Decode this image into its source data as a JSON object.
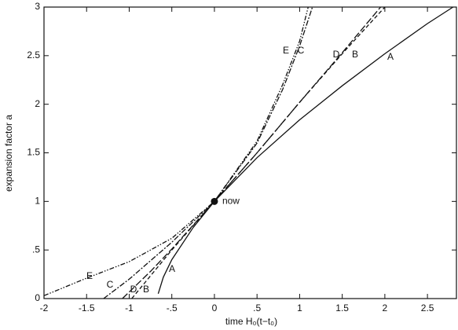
{
  "chart_data": {
    "type": "line",
    "xlabel": "time H₀(t−t₀)",
    "ylabel": "expansion factor a",
    "xlim": [
      -2,
      2.84
    ],
    "ylim": [
      0,
      3
    ],
    "xticks": [
      -2,
      {
        "value": -1.5,
        "label": "-1.5"
      },
      -1,
      {
        "value": -0.5,
        "label": "-.5"
      },
      0,
      {
        "value": 0.5,
        "label": ".5"
      },
      1,
      {
        "value": 1.5,
        "label": "1.5"
      },
      2,
      {
        "value": 2.5,
        "label": "2.5"
      }
    ],
    "yticks": [
      0,
      {
        "value": 0.5,
        "label": ".5"
      },
      1,
      {
        "value": 1.5,
        "label": "1.5"
      },
      2,
      {
        "value": 2.5,
        "label": "2.5"
      },
      3
    ],
    "series": [
      {
        "name": "A",
        "color": "#111111",
        "dash": "none",
        "x": [
          -0.66,
          -0.6,
          -0.5,
          -0.25,
          0,
          0.5,
          1,
          1.5,
          2,
          2.5,
          2.8
        ],
        "values": [
          0.05,
          0.22,
          0.4,
          0.73,
          1,
          1.45,
          1.84,
          2.19,
          2.52,
          2.83,
          3
        ]
      },
      {
        "name": "B",
        "color": "#111111",
        "dash": "5 3",
        "x": [
          -0.97,
          -0.5,
          0,
          0.5,
          1,
          1.5,
          2
        ],
        "values": [
          0,
          0.5,
          1,
          1.5,
          2.02,
          2.52,
          3
        ]
      },
      {
        "name": "C",
        "color": "#111111",
        "dash": "7 2 2 2",
        "x": [
          -1.3,
          -1,
          -0.5,
          0,
          0.5,
          0.8,
          1,
          1.15
        ],
        "values": [
          0,
          0.2,
          0.58,
          1,
          1.6,
          2.15,
          2.6,
          3
        ]
      },
      {
        "name": "D",
        "color": "#111111",
        "dash": "9 3",
        "x": [
          -1.08,
          -0.75,
          -0.5,
          0,
          0.5,
          1,
          1.5,
          1.95
        ],
        "values": [
          0,
          0.28,
          0.51,
          1,
          1.5,
          2.02,
          2.53,
          3
        ]
      },
      {
        "name": "E",
        "color": "#111111",
        "dash": "6 2 1.5 2 1.5 2",
        "x": [
          -2,
          -1.5,
          -1,
          -0.5,
          0,
          0.5,
          0.8,
          1,
          1.1
        ],
        "values": [
          0.03,
          0.21,
          0.38,
          0.62,
          1,
          1.62,
          2.2,
          2.65,
          3
        ]
      }
    ],
    "now_point": {
      "x": 0,
      "y": 1,
      "label": "now"
    }
  }
}
